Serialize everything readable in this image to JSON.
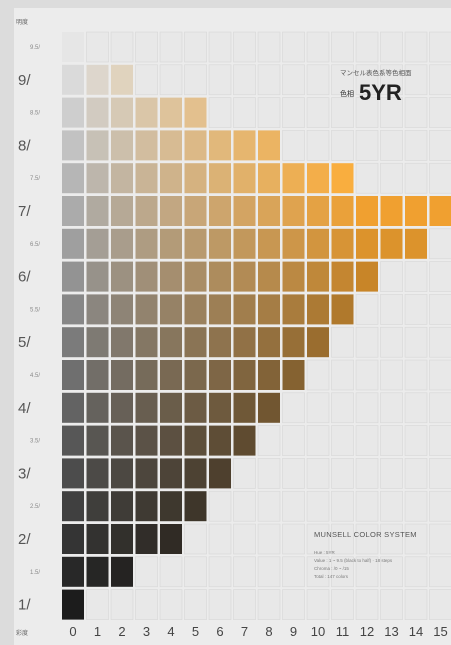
{
  "chart_data": {
    "type": "heatmap",
    "value_axis_label": "明度",
    "chroma_axis_label": "彩度",
    "caption": {
      "subtitle": "マンセル表色系等色相面",
      "hue_label": "色相",
      "hue": "5YR"
    },
    "system_title": "MUNSELL COLOR SYSTEM",
    "system_notes": [
      "Hue : 5YR",
      "Value : 1 ~ 9.5 (black to half) · 18 steps",
      "Chroma : /0 ~ /15",
      "Total : 147 colors"
    ],
    "value_labels": [
      {
        "v": 9.5,
        "text": "9.5/"
      },
      {
        "v": 9,
        "text": "9/"
      },
      {
        "v": 8.5,
        "text": "8.5/"
      },
      {
        "v": 8,
        "text": "8/"
      },
      {
        "v": 7.5,
        "text": "7.5/"
      },
      {
        "v": 7,
        "text": "7/"
      },
      {
        "v": 6.5,
        "text": "6.5/"
      },
      {
        "v": 6,
        "text": "6/"
      },
      {
        "v": 5.5,
        "text": "5.5/"
      },
      {
        "v": 5,
        "text": "5/"
      },
      {
        "v": 4.5,
        "text": "4.5/"
      },
      {
        "v": 4,
        "text": "4/"
      },
      {
        "v": 3.5,
        "text": "3.5/"
      },
      {
        "v": 3,
        "text": "3/"
      },
      {
        "v": 2.5,
        "text": "2.5/"
      },
      {
        "v": 2,
        "text": "2/"
      },
      {
        "v": 1.5,
        "text": "1.5/"
      },
      {
        "v": 1,
        "text": "1/"
      }
    ],
    "chroma_labels": [
      "0",
      "1",
      "2",
      "3",
      "4",
      "5",
      "6",
      "7",
      "8",
      "9",
      "10",
      "11",
      "12",
      "13",
      "14",
      "15"
    ],
    "max_chroma_per_value": [
      {
        "v": 9.5,
        "max": 0
      },
      {
        "v": 9,
        "max": 2
      },
      {
        "v": 8.5,
        "max": 5
      },
      {
        "v": 8,
        "max": 8
      },
      {
        "v": 7.5,
        "max": 11
      },
      {
        "v": 7,
        "max": 15
      },
      {
        "v": 6.5,
        "max": 14
      },
      {
        "v": 6,
        "max": 12
      },
      {
        "v": 5.5,
        "max": 11
      },
      {
        "v": 5,
        "max": 10
      },
      {
        "v": 4.5,
        "max": 9
      },
      {
        "v": 4,
        "max": 8
      },
      {
        "v": 3.5,
        "max": 7
      },
      {
        "v": 3,
        "max": 6
      },
      {
        "v": 2.5,
        "max": 5
      },
      {
        "v": 2,
        "max": 4
      },
      {
        "v": 1.5,
        "max": 2
      },
      {
        "v": 1,
        "max": 0
      }
    ],
    "colors": {
      "neutral_high": "#e6e6e6",
      "neutral_low": "#1c1c1c",
      "hue_vivid": "#f0a030",
      "empty_cell": "#e8e8e8",
      "empty_border": "#d6d6d6"
    }
  }
}
